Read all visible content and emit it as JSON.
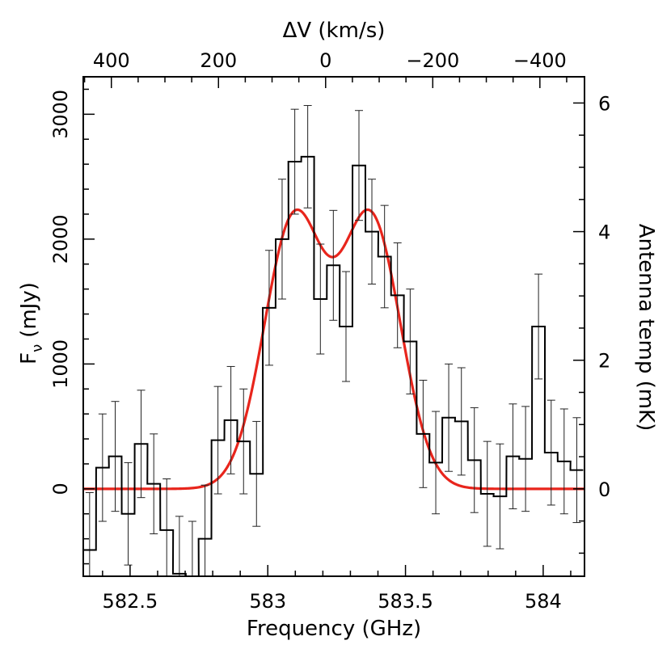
{
  "chart_data": {
    "type": "histogram_with_fit",
    "title": "",
    "xlabel": "Frequency (GHz)",
    "ylabel": "F",
    "ylabel_subscript": "ν",
    "ylabel_units": "(mJy)",
    "x2label": "ΔV (km/s)",
    "y2label": "Antenna temp (mK)",
    "xlim": [
      582.33,
      584.15
    ],
    "ylim": [
      -700,
      3300
    ],
    "x_ticks": [
      582.5,
      583,
      583.5,
      584
    ],
    "x_tick_labels": [
      "582.5",
      "583",
      "583.5",
      "584"
    ],
    "y_ticks": [
      0,
      1000,
      2000,
      3000
    ],
    "y_tick_labels": [
      "0",
      "1000",
      "2000",
      "3000"
    ],
    "velocity_ticks": [
      400,
      200,
      0,
      -200,
      -400
    ],
    "velocity_tick_labels": [
      "400",
      "200",
      "0",
      "−200",
      "−400"
    ],
    "velocity_center_ghz": 583.21,
    "ghz_per_100kms": 0.1945,
    "antenna_ticks": [
      0,
      2,
      4,
      6
    ],
    "antenna_tick_labels": [
      "0",
      "2",
      "4",
      "6"
    ],
    "mjy_per_mk": 515,
    "grid": false,
    "series": [
      {
        "name": "spectrum",
        "style": "step",
        "color": "#000000",
        "bin_width": 0.0466,
        "x": [
          582.353,
          582.4,
          582.446,
          582.493,
          582.54,
          582.586,
          582.633,
          582.679,
          582.726,
          582.772,
          582.819,
          582.866,
          582.912,
          582.959,
          583.005,
          583.052,
          583.098,
          583.145,
          583.191,
          583.238,
          583.284,
          583.331,
          583.378,
          583.424,
          583.471,
          583.517,
          583.564,
          583.61,
          583.657,
          583.703,
          583.75,
          583.797,
          583.843,
          583.89,
          583.936,
          583.983,
          584.029,
          584.076,
          584.122
        ],
        "values": [
          -490,
          170,
          260,
          -200,
          360,
          40,
          -330,
          -680,
          -700,
          -400,
          390,
          550,
          380,
          120,
          1450,
          2000,
          2620,
          2660,
          1520,
          1790,
          1300,
          2590,
          2060,
          1860,
          1550,
          1180,
          440,
          210,
          570,
          540,
          230,
          -40,
          -60,
          260,
          240,
          1300,
          290,
          220,
          150
        ],
        "errors": [
          460,
          430,
          440,
          410,
          430,
          400,
          410,
          460,
          440,
          430,
          430,
          430,
          420,
          420,
          460,
          480,
          420,
          410,
          440,
          440,
          440,
          440,
          420,
          410,
          420,
          420,
          430,
          410,
          430,
          430,
          420,
          420,
          420,
          420,
          420,
          420,
          420,
          420,
          420
        ]
      },
      {
        "name": "double-gaussian fit",
        "style": "line",
        "color": "#e8251c",
        "components": [
          {
            "amplitude": 2150,
            "center": 583.095,
            "sigma": 0.108
          },
          {
            "amplitude": 2150,
            "center": 583.375,
            "sigma": 0.108
          }
        ]
      }
    ]
  }
}
